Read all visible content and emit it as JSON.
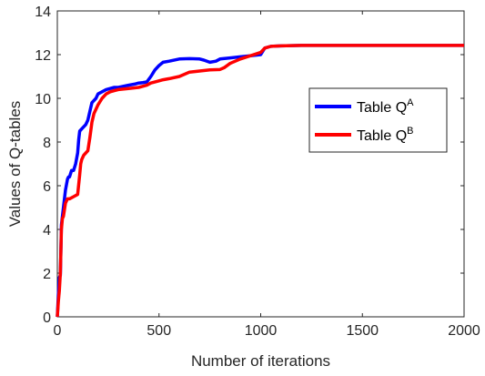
{
  "chart_data": {
    "type": "line",
    "title": "",
    "xlabel": "Number of iterations",
    "ylabel": "Values of Q-tables",
    "xlim": [
      0,
      2000
    ],
    "ylim": [
      0,
      14
    ],
    "xticks": [
      0,
      500,
      1000,
      1500,
      2000
    ],
    "yticks": [
      0,
      2,
      4,
      6,
      8,
      10,
      12,
      14
    ],
    "xtick_labels": [
      "0",
      "500",
      "1000",
      "1500",
      "2000"
    ],
    "ytick_labels": [
      "0",
      "2",
      "4",
      "6",
      "8",
      "10",
      "12",
      "14"
    ],
    "grid": false,
    "legend": {
      "placement": "right",
      "entries": [
        {
          "base": "Table Q",
          "sup": "A"
        },
        {
          "base": "Table Q",
          "sup": "B"
        }
      ]
    },
    "series": [
      {
        "color": "#0000ff",
        "x": [
          0,
          5,
          10,
          15,
          20,
          30,
          40,
          50,
          55,
          60,
          70,
          80,
          90,
          100,
          105,
          110,
          120,
          130,
          140,
          150,
          160,
          170,
          180,
          190,
          200,
          220,
          240,
          260,
          280,
          300,
          350,
          380,
          400,
          420,
          440,
          460,
          480,
          500,
          520,
          550,
          600,
          650,
          700,
          720,
          750,
          780,
          800,
          850,
          900,
          950,
          1000,
          1020,
          1050,
          1100,
          1200,
          1500,
          2000
        ],
        "y": [
          0,
          1.0,
          1.8,
          1.9,
          4.2,
          5.0,
          5.8,
          6.3,
          6.4,
          6.4,
          6.7,
          6.7,
          7.0,
          7.5,
          8.1,
          8.5,
          8.6,
          8.7,
          8.8,
          9.0,
          9.4,
          9.8,
          9.9,
          10.0,
          10.2,
          10.3,
          10.4,
          10.45,
          10.5,
          10.5,
          10.6,
          10.65,
          10.7,
          10.72,
          10.75,
          11.0,
          11.3,
          11.5,
          11.65,
          11.7,
          11.8,
          11.82,
          11.8,
          11.75,
          11.65,
          11.7,
          11.8,
          11.85,
          11.9,
          11.95,
          12.0,
          12.3,
          12.38,
          12.4,
          12.42,
          12.42,
          12.42
        ]
      },
      {
        "color": "#ff0000",
        "x": [
          0,
          5,
          10,
          15,
          20,
          25,
          30,
          40,
          50,
          60,
          80,
          100,
          110,
          115,
          120,
          130,
          140,
          150,
          160,
          170,
          180,
          190,
          200,
          220,
          240,
          260,
          300,
          350,
          400,
          420,
          440,
          460,
          500,
          520,
          550,
          600,
          650,
          700,
          750,
          800,
          820,
          850,
          900,
          950,
          1000,
          1020,
          1050,
          1100,
          1200,
          1500,
          2000
        ],
        "y": [
          0,
          0.7,
          1.2,
          2.0,
          4.0,
          4.5,
          4.6,
          5.2,
          5.4,
          5.4,
          5.5,
          5.6,
          6.5,
          7.0,
          7.2,
          7.4,
          7.5,
          7.6,
          8.2,
          8.9,
          9.3,
          9.5,
          9.7,
          10.0,
          10.2,
          10.3,
          10.4,
          10.45,
          10.5,
          10.55,
          10.6,
          10.7,
          10.8,
          10.85,
          10.9,
          11.0,
          11.2,
          11.25,
          11.3,
          11.32,
          11.4,
          11.6,
          11.8,
          11.95,
          12.1,
          12.3,
          12.38,
          12.4,
          12.42,
          12.42,
          12.42
        ]
      }
    ]
  }
}
